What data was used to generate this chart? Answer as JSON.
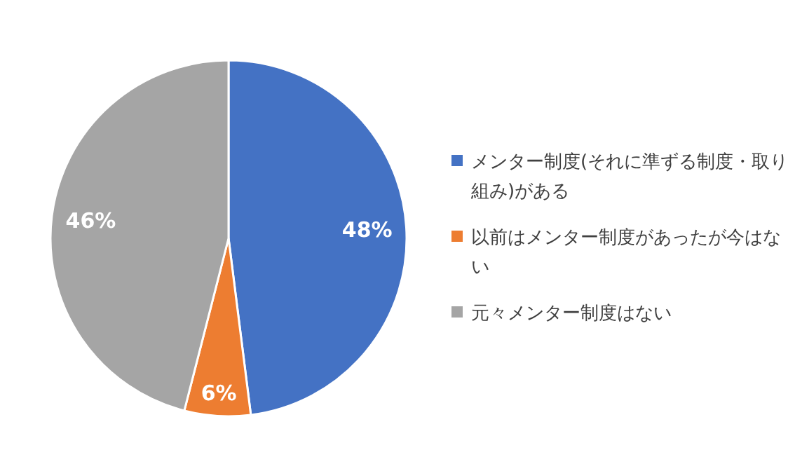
{
  "chart_data": {
    "type": "pie",
    "categories": [
      "メンター制度(それに準ずる制度・取り組み)がある",
      "以前はメンター制度があったが今はない",
      "元々メンター制度はない"
    ],
    "values": [
      48,
      6,
      46
    ],
    "value_labels": [
      "48%",
      "6%",
      "46%"
    ],
    "colors": [
      "#4472c4",
      "#ed7d31",
      "#a5a5a5"
    ],
    "legend": "right"
  }
}
